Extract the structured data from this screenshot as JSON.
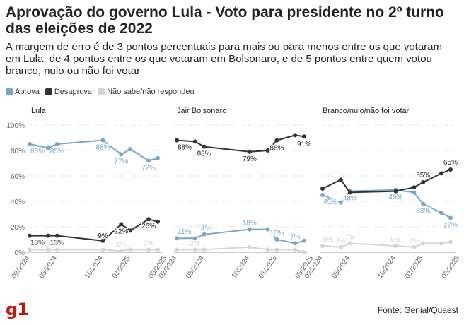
{
  "title": "Aprovação do governo Lula - Voto para presidente no 2º turno das eleições de 2022",
  "subtitle": "A margem de erro é de 3 pontos percentuais para mais ou para menos entre os que votaram em Lula, de 4 pontos entre os que votaram em Bolsonaro, e de 5 pontos entre quem votou branco, nulo ou não foi votar",
  "legend": [
    {
      "label": "Aprova",
      "color": "#79a6c6"
    },
    {
      "label": "Desaprova",
      "color": "#333333"
    },
    {
      "label": "Não sabe/não respondeu",
      "color": "#d5d5d5"
    }
  ],
  "source": "Fonte: Genial/Quaest",
  "logo": "g1",
  "chart_data": {
    "type": "line",
    "y_ticks": [
      "0%",
      "20%",
      "40%",
      "60%",
      "80%",
      "100%"
    ],
    "ylim": [
      0,
      100
    ],
    "x_ticks": [
      "02/2024",
      "05/2024",
      "10/2024",
      "01/2025",
      "05/2025"
    ],
    "x": [
      "02/2024",
      "04/2024",
      "05/2024",
      "07/2024",
      "10/2024",
      "12/2024",
      "01/2025",
      "03/2025",
      "04/2025"
    ],
    "colors": {
      "aprova": "#79a6c6",
      "desaprova": "#333333",
      "nao_sabe": "#d5d5d5"
    },
    "panels": [
      {
        "title": "Lula",
        "series": [
          {
            "name": "Aprova",
            "key": "aprova",
            "values": [
              85,
              82,
              85,
              88,
              77,
              81,
              72,
              74
            ],
            "x": [
              "02/2024",
              "04/2024",
              "05/2024",
              "10/2024",
              "12/2024",
              "01/2025",
              "03/2025",
              "04/2025"
            ],
            "labels": [
              [
                0,
                "85%"
              ],
              [
                2,
                "85%"
              ],
              [
                3,
                "88%"
              ],
              [
                4,
                "77%"
              ],
              [
                6,
                "72%"
              ]
            ]
          },
          {
            "name": "Desaprova",
            "key": "desaprova",
            "values": [
              13,
              13,
              13,
              9,
              22,
              17,
              26,
              24
            ],
            "x": [
              "02/2024",
              "04/2024",
              "05/2024",
              "10/2024",
              "12/2024",
              "01/2025",
              "03/2025",
              "04/2025"
            ],
            "labels": [
              [
                0,
                "13%"
              ],
              [
                2,
                "13%"
              ],
              [
                3,
                "9%"
              ],
              [
                4,
                "22%"
              ],
              [
                6,
                "26%"
              ]
            ]
          },
          {
            "name": "Não sabe/não respondeu",
            "key": "nao_sabe",
            "values": [
              2,
              2,
              2,
              2,
              1,
              2,
              2,
              2
            ],
            "x": [
              "02/2024",
              "04/2024",
              "05/2024",
              "10/2024",
              "12/2024",
              "01/2025",
              "03/2025",
              "04/2025"
            ],
            "labels": [
              [
                1,
                "2%"
              ],
              [
                4,
                "1%"
              ],
              [
                6,
                "2%"
              ]
            ]
          }
        ]
      },
      {
        "title": "Jair Bolsonaro",
        "series": [
          {
            "name": "Aprova",
            "key": "aprova",
            "values": [
              11,
              11,
              14,
              18,
              18,
              10,
              7,
              9
            ],
            "x": [
              "02/2024",
              "04/2024",
              "05/2024",
              "10/2024",
              "12/2024",
              "01/2025",
              "03/2025",
              "04/2025"
            ],
            "labels": [
              [
                0,
                "11%"
              ],
              [
                2,
                "14%"
              ],
              [
                3,
                "18%"
              ],
              [
                5,
                "10%"
              ],
              [
                6,
                "7%"
              ]
            ]
          },
          {
            "name": "Desaprova",
            "key": "desaprova",
            "values": [
              88,
              87,
              83,
              79,
              80,
              88,
              92,
              91
            ],
            "x": [
              "02/2024",
              "04/2024",
              "05/2024",
              "10/2024",
              "12/2024",
              "01/2025",
              "03/2025",
              "04/2025"
            ],
            "labels": [
              [
                0,
                "88%"
              ],
              [
                2,
                "83%"
              ],
              [
                3,
                "79%"
              ],
              [
                5,
                "88%"
              ],
              [
                7,
                "91%"
              ]
            ]
          },
          {
            "name": "Não sabe/não respondeu",
            "key": "nao_sabe",
            "values": [
              2,
              2,
              2,
              4,
              2,
              2,
              2,
              0
            ],
            "x": [
              "02/2024",
              "04/2024",
              "05/2024",
              "10/2024",
              "12/2024",
              "01/2025",
              "03/2025",
              "04/2025"
            ],
            "labels": [
              [
                1,
                "2%"
              ]
            ]
          }
        ]
      },
      {
        "title": "Branco/nulo/não foi votar",
        "series": [
          {
            "name": "Aprova",
            "key": "aprova",
            "values": [
              45,
              39,
              48,
              49,
              47,
              38,
              31,
              27
            ],
            "x": [
              "02/2024",
              "04/2024",
              "05/2024",
              "10/2024",
              "12/2024",
              "01/2025",
              "03/2025",
              "04/2025"
            ],
            "labels": [
              [
                0,
                "45%"
              ],
              [
                2,
                "48%"
              ],
              [
                3,
                "49%"
              ],
              [
                5,
                "38%"
              ],
              [
                7,
                "27%"
              ]
            ]
          },
          {
            "name": "Desaprova",
            "key": "desaprova",
            "values": [
              50,
              57,
              47,
              48,
              51,
              55,
              62,
              65
            ],
            "x": [
              "02/2024",
              "04/2024",
              "05/2024",
              "10/2024",
              "12/2024",
              "01/2025",
              "03/2025",
              "04/2025"
            ],
            "labels": [
              [
                5,
                "55%"
              ],
              [
                7,
                "65%"
              ]
            ]
          },
          {
            "name": "Não sabe/não respondeu",
            "key": "nao_sabe",
            "values": [
              5,
              4,
              7,
              5,
              4,
              7,
              7,
              8
            ],
            "x": [
              "02/2024",
              "04/2024",
              "05/2024",
              "10/2024",
              "12/2024",
              "01/2025",
              "03/2025",
              "04/2025"
            ],
            "labels": [
              [
                0,
                "5%"
              ],
              [
                1,
                "4%"
              ],
              [
                2,
                "7%"
              ],
              [
                3,
                "5%"
              ],
              [
                4,
                "4%"
              ]
            ]
          }
        ]
      }
    ]
  }
}
